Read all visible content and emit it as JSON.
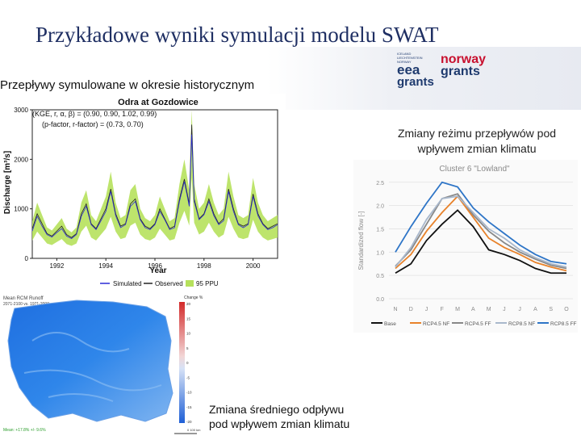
{
  "slide": {
    "title": "Przykładowe wyniki symulacji modelu SWAT",
    "section_historical": "Przepływy symulowane w okresie historycznym",
    "section_regime": "Zmiany reżimu przepływów pod wpływem zmian klimatu",
    "section_runoff_line1": "Zmiana średniego odpływu",
    "section_runoff_line2": "pod wpływem zmian klimatu"
  },
  "logos": {
    "eea": {
      "small_lines": [
        "ICELAND",
        "LIECHTENSTEIN",
        "NORWAY"
      ],
      "line1": "eea",
      "line2": "grants",
      "color": "#1e3a6e"
    },
    "norway": {
      "line1": "norway",
      "line2": "grants",
      "color": "#c8102e",
      "color2": "#1e3a6e"
    }
  },
  "chart_data": [
    {
      "type": "line",
      "title": "Odra at Gozdowice",
      "annotation_line1": "(KGE, r, α, β) = (0.90, 0.90, 1.02, 0.99)",
      "annotation_line2": "(p-factor, r-factor) = (0.73, 0.70)",
      "xlabel": "Year",
      "ylabel": "Discharge [m³/s]",
      "x_ticks": [
        "1992",
        "1994",
        "1996",
        "1998",
        "2000"
      ],
      "y_ticks": [
        "0",
        "1000",
        "2000",
        "3000"
      ],
      "xlim": [
        1991.0,
        2001.0
      ],
      "ylim": [
        0,
        3000
      ],
      "legend": [
        "Simulated",
        "Observed",
        "95 PPU"
      ],
      "colors": {
        "simulated": "#2b2bd6",
        "observed": "#222222",
        "ppu": "#b6e15c"
      },
      "x": [
        1991.0,
        1991.2,
        1991.4,
        1991.6,
        1991.8,
        1992.0,
        1992.2,
        1992.4,
        1992.6,
        1992.8,
        1993.0,
        1993.2,
        1993.4,
        1993.6,
        1993.8,
        1994.0,
        1994.2,
        1994.4,
        1994.6,
        1994.8,
        1995.0,
        1995.2,
        1995.4,
        1995.6,
        1995.8,
        1996.0,
        1996.2,
        1996.4,
        1996.6,
        1996.8,
        1997.0,
        1997.2,
        1997.4,
        1997.5,
        1997.6,
        1997.8,
        1998.0,
        1998.2,
        1998.4,
        1998.6,
        1998.8,
        1999.0,
        1999.2,
        1999.4,
        1999.6,
        1999.8,
        2000.0,
        2000.2,
        2000.4,
        2000.6,
        2000.8,
        2001.0
      ],
      "observed": [
        600,
        900,
        700,
        500,
        450,
        550,
        650,
        480,
        420,
        500,
        900,
        1100,
        700,
        600,
        800,
        1000,
        1400,
        900,
        650,
        700,
        1100,
        1200,
        800,
        650,
        600,
        700,
        1000,
        800,
        600,
        650,
        1200,
        1600,
        1100,
        2700,
        1200,
        800,
        900,
        1200,
        900,
        700,
        800,
        1400,
        1000,
        700,
        650,
        700,
        1300,
        900,
        700,
        600,
        650,
        700
      ],
      "simulated": [
        550,
        850,
        650,
        480,
        430,
        520,
        600,
        450,
        400,
        480,
        850,
        1050,
        680,
        580,
        760,
        950,
        1350,
        860,
        620,
        680,
        1050,
        1150,
        780,
        620,
        580,
        680,
        950,
        780,
        580,
        620,
        1150,
        1550,
        1050,
        2500,
        1150,
        780,
        880,
        1150,
        860,
        680,
        760,
        1350,
        950,
        680,
        620,
        680,
        1250,
        860,
        680,
        580,
        620,
        680
      ]
    },
    {
      "type": "line",
      "title": "Cluster 6 \"Lowland\"",
      "xlabel": "",
      "ylabel": "Standardized flow [-]",
      "categories": [
        "N",
        "D",
        "J",
        "F",
        "M",
        "A",
        "M",
        "J",
        "J",
        "A",
        "S",
        "O"
      ],
      "y_ticks": [
        "0.0",
        "0.5",
        "1.0",
        "1.5",
        "2.0",
        "2.5"
      ],
      "ylim": [
        0,
        2.6
      ],
      "series": [
        {
          "name": "Base",
          "color": "#111111",
          "values": [
            0.55,
            0.75,
            1.25,
            1.6,
            1.9,
            1.55,
            1.05,
            0.95,
            0.82,
            0.65,
            0.55,
            0.55
          ]
        },
        {
          "name": "RCP4.5 NF",
          "color": "#e8822a",
          "values": [
            0.65,
            0.95,
            1.45,
            1.85,
            2.2,
            1.75,
            1.3,
            1.1,
            0.95,
            0.78,
            0.68,
            0.6
          ]
        },
        {
          "name": "RCP4.5 FF",
          "color": "#888888",
          "values": [
            0.7,
            1.05,
            1.6,
            2.15,
            2.25,
            1.8,
            1.45,
            1.2,
            1.0,
            0.85,
            0.72,
            0.65
          ]
        },
        {
          "name": "RCP8.5 NF",
          "color": "#a9b8cc",
          "values": [
            0.68,
            1.1,
            1.7,
            2.15,
            2.2,
            1.85,
            1.5,
            1.3,
            1.05,
            0.88,
            0.75,
            0.68
          ]
        },
        {
          "name": "RCP8.5 FF",
          "color": "#2e75c7",
          "values": [
            1.0,
            1.55,
            2.05,
            2.5,
            2.4,
            1.95,
            1.65,
            1.4,
            1.15,
            0.95,
            0.8,
            0.75
          ]
        }
      ]
    }
  ],
  "map": {
    "title_line1": "Mean RCM Runoff",
    "title_line2": "2071-2100 vs. 1971-2000",
    "legend_title": "Change %",
    "legend_ticks": [
      "20",
      "15",
      "10",
      "5",
      "0",
      "-5",
      "-10",
      "-15",
      "-20"
    ],
    "bottom_text": "Mean: +17.8% +/- 9.6%",
    "scale_text": "0 100 km"
  }
}
